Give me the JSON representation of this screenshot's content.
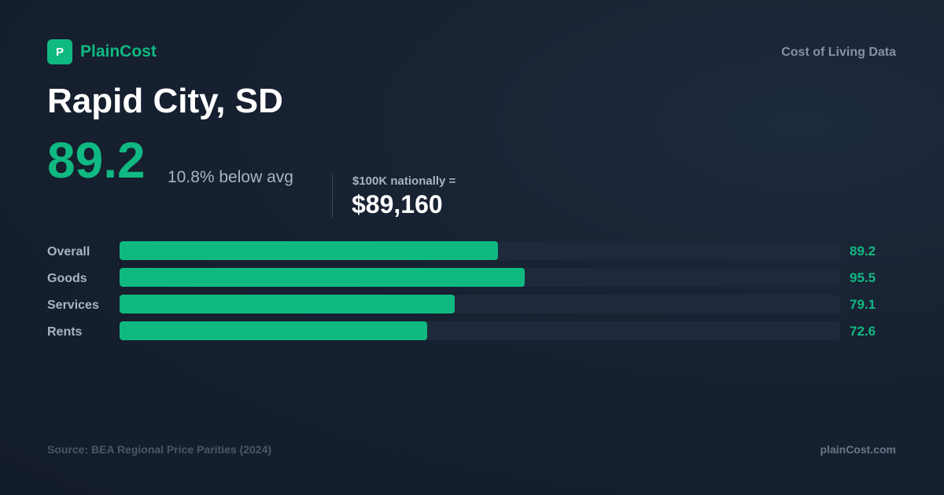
{
  "brand": {
    "logo_letter": "P",
    "name": "PlainCost",
    "tagline": "Cost of Living Data",
    "accent_color": "#10b981"
  },
  "city": "Rapid City, SD",
  "score": {
    "value": "89.2",
    "comparison": "10.8% below avg"
  },
  "national": {
    "label": "$100K nationally =",
    "value": "$89,160"
  },
  "chart_data": {
    "type": "bar",
    "orientation": "horizontal",
    "categories": [
      "Overall",
      "Goods",
      "Services",
      "Rents"
    ],
    "values": [
      89.2,
      95.5,
      79.1,
      72.6
    ],
    "value_labels": [
      "89.2",
      "95.5",
      "79.1",
      "72.6"
    ],
    "xlim": [
      0,
      170
    ],
    "bar_color": "#10b981",
    "track_color": "#1e293b"
  },
  "footer": {
    "source": "Source: BEA Regional Price Parities (2024)",
    "site": "plainCost.com"
  }
}
